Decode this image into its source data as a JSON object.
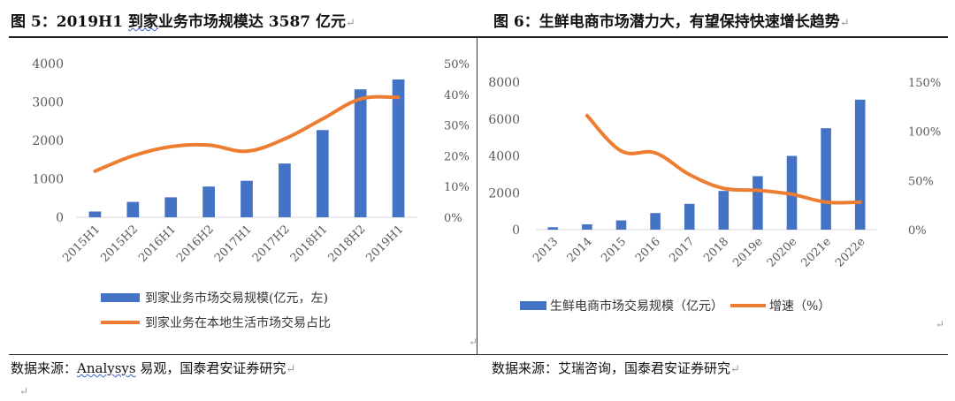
{
  "left_panel": {
    "title": "图 5：2019H1 到家业务市场规模达 3587 亿元",
    "title_underlined": "到家",
    "source_prefix": "数据来源：",
    "source_link": "Analysys",
    "source_rest": " 易观，国泰君安证券研究"
  },
  "right_panel": {
    "title": "图 6：生鲜电商市场潜力大，有望保持快速增长趋势",
    "source": "数据来源：艾瑞咨询，国泰君安证券研究"
  },
  "paragraph_mark": "↵",
  "colors": {
    "bar": "#4472C4",
    "line": "#ED7D31",
    "axis": "#d9d9d9",
    "text": "#595959"
  },
  "chart_data": [
    {
      "type": "bar",
      "categories": [
        "2015H1",
        "2015H2",
        "2016H1",
        "2016H2",
        "2017H1",
        "2017H2",
        "2018H1",
        "2018H2",
        "2019H1"
      ],
      "ylim": [
        0,
        4000
      ],
      "yticks": [
        "0",
        "1000",
        "2000",
        "3000",
        "4000"
      ],
      "y2lim": [
        0,
        50
      ],
      "y2ticks": [
        "0%",
        "10%",
        "20%",
        "30%",
        "40%",
        "50%"
      ],
      "series": [
        {
          "name": "到家业务市场交易规模(亿元，左)",
          "type": "bar",
          "axis": "left",
          "values": [
            150,
            400,
            520,
            800,
            950,
            1400,
            2270,
            3330,
            3587
          ]
        },
        {
          "name": "到家业务在本地生活市场交易占比",
          "type": "line",
          "axis": "right",
          "values": [
            15,
            20,
            23,
            23.5,
            21.5,
            25.5,
            32,
            38.5,
            39
          ]
        }
      ],
      "legend": "bottom",
      "grid": false
    },
    {
      "type": "bar",
      "categories": [
        "2013",
        "2014",
        "2015",
        "2016",
        "2017",
        "2018",
        "2019e",
        "2020e",
        "2021e",
        "2022e"
      ],
      "ylim": [
        0,
        8000
      ],
      "yticks": [
        "0",
        "2000",
        "4000",
        "6000",
        "8000"
      ],
      "y2lim": [
        0,
        150
      ],
      "y2ticks": [
        "0%",
        "50%",
        "100%",
        "150%"
      ],
      "series": [
        {
          "name": "生鲜电商市场交易规模（亿元）",
          "type": "bar",
          "axis": "left",
          "values": [
            130,
            290,
            500,
            900,
            1400,
            2100,
            2900,
            4000,
            5500,
            7050
          ]
        },
        {
          "name": "增速（%）",
          "type": "line",
          "axis": "right",
          "values": [
            null,
            116,
            80,
            78,
            56,
            42,
            40,
            36,
            28,
            28
          ]
        }
      ],
      "legend": "bottom",
      "grid": false
    }
  ]
}
